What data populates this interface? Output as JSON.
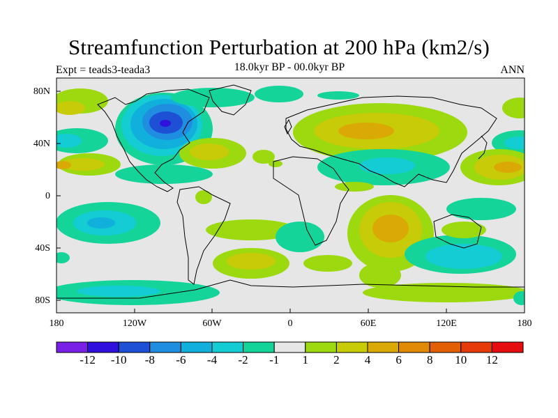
{
  "title": "Streamfunction Perturbation at 200 hPa (km2/s)",
  "subtitle": "18.0kyr BP - 00.0kyr BP",
  "experiment": "Expt = teads3-teada3",
  "season": "ANN",
  "lat_ticks": [
    "80N",
    "40N",
    "0",
    "40S",
    "80S"
  ],
  "lon_ticks": [
    "180",
    "120W",
    "60W",
    "0",
    "60E",
    "120E",
    "180"
  ],
  "colorbar": {
    "labels": [
      "-12",
      "-10",
      "-8",
      "-6",
      "-4",
      "-2",
      "-1",
      "1",
      "2",
      "4",
      "6",
      "8",
      "10",
      "12"
    ],
    "colors": [
      "#7a1fe6",
      "#2f10dd",
      "#1e50d6",
      "#1f8ee0",
      "#11b0dc",
      "#13ccd4",
      "#14d49a",
      "#e6e6e6",
      "#9cd90f",
      "#c8cb08",
      "#dba905",
      "#e08a06",
      "#e35f06",
      "#e63a0a",
      "#e60d10"
    ]
  }
}
